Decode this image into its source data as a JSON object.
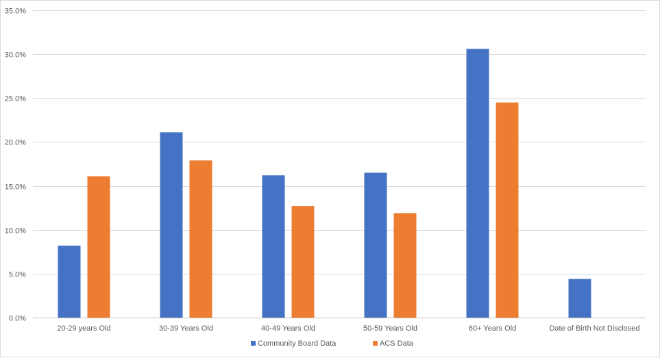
{
  "chart_data": {
    "type": "bar",
    "categories": [
      "20-29 years Old",
      "30-39 Years Old",
      "40-49 Years Old",
      "50-59 Years Old",
      "60+ Years Old",
      "Date of Birth Not Disclosed"
    ],
    "series": [
      {
        "name": "Community Board Data",
        "color": "#4472C4",
        "values": [
          8.2,
          21.1,
          16.2,
          16.5,
          30.6,
          4.4
        ]
      },
      {
        "name": "ACS Data",
        "color": "#ED7D31",
        "values": [
          16.1,
          17.9,
          12.7,
          11.9,
          24.5,
          null
        ]
      }
    ],
    "y_ticks": [
      "0.0%",
      "5.0%",
      "10.0%",
      "15.0%",
      "20.0%",
      "25.0%",
      "30.0%",
      "35.0%"
    ],
    "ylim": [
      0,
      35
    ],
    "grid": true,
    "legend_position": "bottom",
    "title": "",
    "xlabel": "",
    "ylabel": ""
  }
}
